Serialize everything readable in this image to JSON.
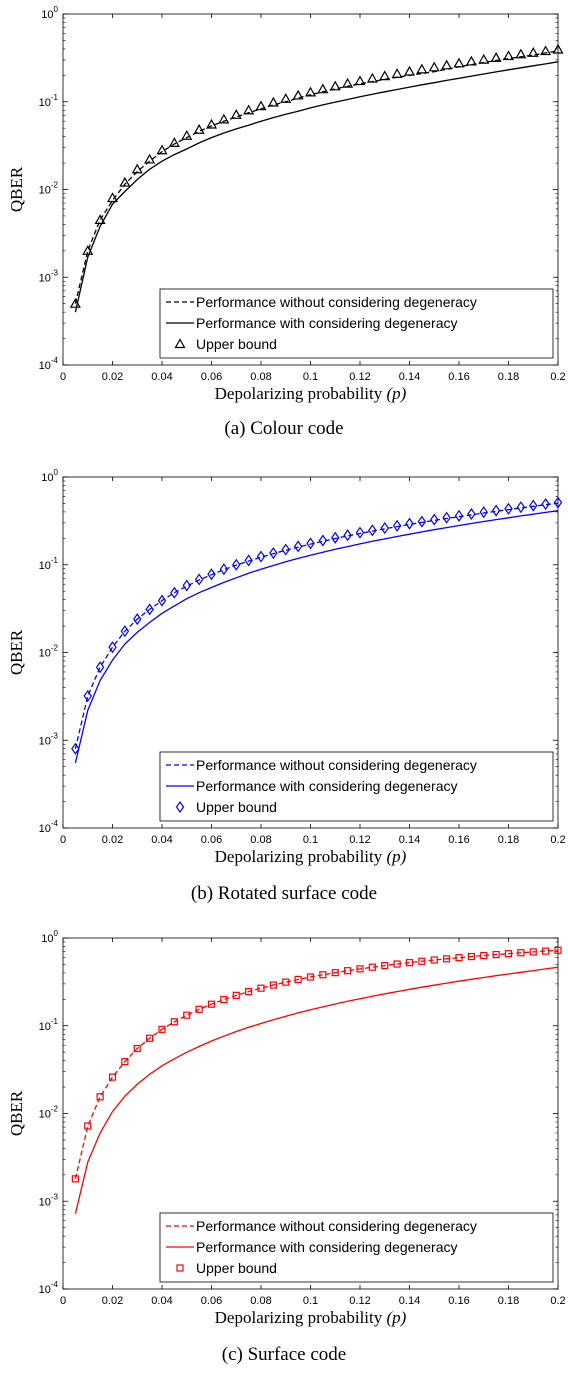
{
  "chart_data": [
    {
      "type": "line",
      "caption": "(a) Colour code",
      "xlabel_text": "Depolarizing probability ",
      "xlabel_var": "(p)",
      "ylabel": "QBER",
      "xlim": [
        0,
        0.2
      ],
      "ylim": [
        0.0001,
        1
      ],
      "yscale": "log",
      "xticks": [
        "0",
        "0.02",
        "0.04",
        "0.06",
        "0.08",
        "0.1",
        "0.12",
        "0.14",
        "0.16",
        "0.18",
        "0.2"
      ],
      "yticks": [
        {
          "base": "10",
          "exp": "-4"
        },
        {
          "base": "10",
          "exp": "-3"
        },
        {
          "base": "10",
          "exp": "-2"
        },
        {
          "base": "10",
          "exp": "-1"
        },
        {
          "base": "10",
          "exp": "0"
        }
      ],
      "legend_position": "bottom-right",
      "color": "#000000",
      "marker": "triangle",
      "x": [
        0.005,
        0.01,
        0.015,
        0.02,
        0.025,
        0.03,
        0.035,
        0.04,
        0.045,
        0.05,
        0.055,
        0.06,
        0.065,
        0.07,
        0.075,
        0.08,
        0.085,
        0.09,
        0.095,
        0.1,
        0.105,
        0.11,
        0.115,
        0.12,
        0.125,
        0.13,
        0.135,
        0.14,
        0.145,
        0.15,
        0.155,
        0.16,
        0.165,
        0.17,
        0.175,
        0.18,
        0.185,
        0.19,
        0.195,
        0.2
      ],
      "series": [
        {
          "name": "Performance without considering degeneracy",
          "style": "dashed",
          "values": [
            0.0005,
            0.002,
            0.0045,
            0.0075,
            0.0115,
            0.016,
            0.021,
            0.027,
            0.033,
            0.039,
            0.046,
            0.053,
            0.06,
            0.067,
            0.075,
            0.083,
            0.092,
            0.1,
            0.11,
            0.12,
            0.13,
            0.14,
            0.15,
            0.16,
            0.17,
            0.18,
            0.19,
            0.2,
            0.21,
            0.22,
            0.235,
            0.25,
            0.265,
            0.28,
            0.295,
            0.31,
            0.325,
            0.34,
            0.36,
            0.38
          ]
        },
        {
          "name": "Performance with considering degeneracy",
          "style": "solid",
          "values": [
            0.0004,
            0.0017,
            0.0038,
            0.0068,
            0.0095,
            0.013,
            0.017,
            0.021,
            0.025,
            0.029,
            0.034,
            0.039,
            0.044,
            0.049,
            0.054,
            0.06,
            0.066,
            0.072,
            0.078,
            0.085,
            0.092,
            0.099,
            0.106,
            0.114,
            0.122,
            0.13,
            0.138,
            0.147,
            0.156,
            0.165,
            0.175,
            0.185,
            0.196,
            0.207,
            0.219,
            0.231,
            0.244,
            0.257,
            0.27,
            0.285
          ]
        },
        {
          "name": "Upper bound",
          "style": "markers",
          "values": [
            0.0005,
            0.002,
            0.0045,
            0.008,
            0.012,
            0.017,
            0.022,
            0.028,
            0.034,
            0.041,
            0.048,
            0.055,
            0.063,
            0.071,
            0.08,
            0.089,
            0.098,
            0.108,
            0.118,
            0.128,
            0.139,
            0.15,
            0.161,
            0.172,
            0.184,
            0.196,
            0.208,
            0.221,
            0.234,
            0.247,
            0.26,
            0.274,
            0.288,
            0.302,
            0.317,
            0.332,
            0.347,
            0.362,
            0.378,
            0.394
          ]
        }
      ]
    },
    {
      "type": "line",
      "caption": "(b) Rotated surface code",
      "xlabel_text": "Depolarizing probability ",
      "xlabel_var": "(p)",
      "ylabel": "QBER",
      "xlim": [
        0,
        0.2
      ],
      "ylim": [
        0.0001,
        1
      ],
      "yscale": "log",
      "xticks": [
        "0",
        "0.02",
        "0.04",
        "0.06",
        "0.08",
        "0.1",
        "0.12",
        "0.14",
        "0.16",
        "0.18",
        "0.2"
      ],
      "yticks": [
        {
          "base": "10",
          "exp": "-4"
        },
        {
          "base": "10",
          "exp": "-3"
        },
        {
          "base": "10",
          "exp": "-2"
        },
        {
          "base": "10",
          "exp": "-1"
        },
        {
          "base": "10",
          "exp": "0"
        }
      ],
      "legend_position": "bottom-right",
      "color": "#0000ff",
      "marker": "diamond",
      "x": [
        0.005,
        0.01,
        0.015,
        0.02,
        0.025,
        0.03,
        0.035,
        0.04,
        0.045,
        0.05,
        0.055,
        0.06,
        0.065,
        0.07,
        0.075,
        0.08,
        0.085,
        0.09,
        0.095,
        0.1,
        0.105,
        0.11,
        0.115,
        0.12,
        0.125,
        0.13,
        0.135,
        0.14,
        0.145,
        0.15,
        0.155,
        0.16,
        0.165,
        0.17,
        0.175,
        0.18,
        0.185,
        0.19,
        0.195,
        0.2
      ],
      "series": [
        {
          "name": "Performance without considering degeneracy",
          "style": "dashed",
          "values": [
            0.0008,
            0.0032,
            0.0068,
            0.0115,
            0.0175,
            0.024,
            0.031,
            0.039,
            0.048,
            0.057,
            0.067,
            0.077,
            0.088,
            0.099,
            0.11,
            0.122,
            0.134,
            0.146,
            0.159,
            0.172,
            0.185,
            0.199,
            0.213,
            0.227,
            0.242,
            0.257,
            0.272,
            0.288,
            0.304,
            0.32,
            0.337,
            0.354,
            0.371,
            0.389,
            0.407,
            0.425,
            0.444,
            0.463,
            0.483,
            0.503
          ]
        },
        {
          "name": "Performance with considering degeneracy",
          "style": "solid",
          "values": [
            0.00055,
            0.0022,
            0.0048,
            0.0082,
            0.0125,
            0.017,
            0.022,
            0.028,
            0.034,
            0.041,
            0.048,
            0.055,
            0.063,
            0.071,
            0.08,
            0.089,
            0.098,
            0.108,
            0.118,
            0.128,
            0.139,
            0.15,
            0.161,
            0.173,
            0.185,
            0.197,
            0.21,
            0.223,
            0.237,
            0.251,
            0.265,
            0.28,
            0.295,
            0.311,
            0.327,
            0.343,
            0.36,
            0.377,
            0.395,
            0.413
          ]
        },
        {
          "name": "Upper bound",
          "style": "markers",
          "values": [
            0.0008,
            0.0032,
            0.0068,
            0.0115,
            0.0175,
            0.024,
            0.031,
            0.039,
            0.048,
            0.058,
            0.068,
            0.078,
            0.089,
            0.1,
            0.112,
            0.124,
            0.136,
            0.149,
            0.162,
            0.175,
            0.189,
            0.203,
            0.217,
            0.232,
            0.247,
            0.262,
            0.278,
            0.294,
            0.31,
            0.327,
            0.344,
            0.361,
            0.379,
            0.397,
            0.415,
            0.434,
            0.453,
            0.472,
            0.492,
            0.512
          ]
        }
      ]
    },
    {
      "type": "line",
      "caption": "(c) Surface code",
      "xlabel_text": "Depolarizing probability ",
      "xlabel_var": "(p)",
      "ylabel": "QBER",
      "xlim": [
        0,
        0.2
      ],
      "ylim": [
        0.0001,
        1
      ],
      "yscale": "log",
      "xticks": [
        "0",
        "0.02",
        "0.04",
        "0.06",
        "0.08",
        "0.1",
        "0.12",
        "0.14",
        "0.16",
        "0.18",
        "0.2"
      ],
      "yticks": [
        {
          "base": "10",
          "exp": "-4"
        },
        {
          "base": "10",
          "exp": "-3"
        },
        {
          "base": "10",
          "exp": "-2"
        },
        {
          "base": "10",
          "exp": "-1"
        },
        {
          "base": "10",
          "exp": "0"
        }
      ],
      "legend_position": "bottom-right",
      "color": "#ff0000",
      "marker": "square",
      "x": [
        0.005,
        0.01,
        0.015,
        0.02,
        0.025,
        0.03,
        0.035,
        0.04,
        0.045,
        0.05,
        0.055,
        0.06,
        0.065,
        0.07,
        0.075,
        0.08,
        0.085,
        0.09,
        0.095,
        0.1,
        0.105,
        0.11,
        0.115,
        0.12,
        0.125,
        0.13,
        0.135,
        0.14,
        0.145,
        0.15,
        0.155,
        0.16,
        0.165,
        0.17,
        0.175,
        0.18,
        0.185,
        0.19,
        0.195,
        0.2
      ],
      "series": [
        {
          "name": "Performance without considering degeneracy",
          "style": "dashed",
          "values": [
            0.0018,
            0.0072,
            0.0155,
            0.026,
            0.039,
            0.055,
            0.072,
            0.091,
            0.111,
            0.132,
            0.154,
            0.176,
            0.199,
            0.222,
            0.245,
            0.268,
            0.291,
            0.314,
            0.337,
            0.359,
            0.381,
            0.403,
            0.424,
            0.445,
            0.465,
            0.485,
            0.505,
            0.524,
            0.543,
            0.561,
            0.579,
            0.597,
            0.614,
            0.631,
            0.647,
            0.663,
            0.679,
            0.694,
            0.709,
            0.724
          ]
        },
        {
          "name": "Performance with considering degeneracy",
          "style": "solid",
          "values": [
            0.00072,
            0.0028,
            0.006,
            0.0105,
            0.0158,
            0.0215,
            0.028,
            0.035,
            0.042,
            0.05,
            0.058,
            0.067,
            0.076,
            0.086,
            0.096,
            0.106,
            0.117,
            0.128,
            0.14,
            0.152,
            0.164,
            0.177,
            0.19,
            0.203,
            0.217,
            0.231,
            0.245,
            0.26,
            0.275,
            0.29,
            0.306,
            0.322,
            0.338,
            0.355,
            0.372,
            0.389,
            0.407,
            0.425,
            0.444,
            0.463
          ]
        },
        {
          "name": "Upper bound",
          "style": "markers",
          "values": [
            0.0018,
            0.0072,
            0.0155,
            0.026,
            0.039,
            0.055,
            0.072,
            0.091,
            0.111,
            0.132,
            0.154,
            0.176,
            0.199,
            0.222,
            0.245,
            0.268,
            0.291,
            0.314,
            0.337,
            0.359,
            0.381,
            0.403,
            0.424,
            0.445,
            0.465,
            0.485,
            0.505,
            0.524,
            0.543,
            0.561,
            0.579,
            0.597,
            0.614,
            0.631,
            0.647,
            0.663,
            0.679,
            0.694,
            0.709,
            0.724
          ]
        }
      ]
    }
  ]
}
